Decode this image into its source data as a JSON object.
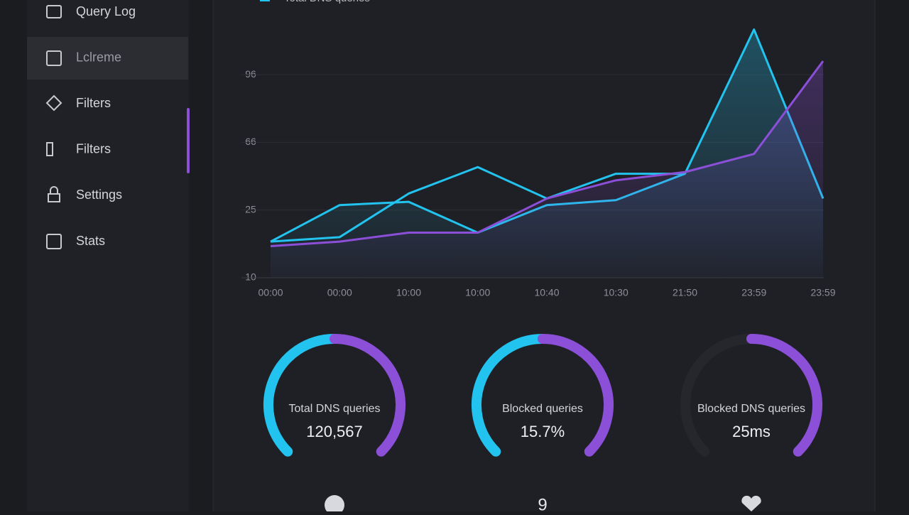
{
  "sidebar": {
    "items": [
      "Query Log",
      "Lclreme",
      "Filters",
      "Filters",
      "Settings",
      "Stats"
    ],
    "active": 1
  },
  "chart_data": {
    "type": "line",
    "categories": [
      "00:00",
      "00:00",
      "10:00",
      "10:00",
      "10:40",
      "10:30",
      "21:50",
      "23:59",
      "23:59"
    ],
    "series": [
      {
        "name": "Total DNS queries",
        "color": "#22c3ee",
        "fill": true,
        "values": [
          18,
          28,
          30,
          20,
          28,
          31,
          47,
          116,
          32
        ]
      },
      {
        "color": "#22c3ee",
        "values": [
          18,
          19,
          35,
          51,
          32,
          47,
          47,
          null,
          null
        ]
      },
      {
        "color": "#8b4fd8",
        "fill": true,
        "values": [
          17,
          18,
          20,
          20,
          32,
          43,
          48,
          59,
          102
        ]
      }
    ],
    "ylim": [
      10,
      116
    ],
    "yticks": [
      10,
      25,
      66,
      96
    ],
    "grid": true
  },
  "gauges": [
    {
      "label": "Total DNS queries",
      "value": "120,567",
      "track": false
    },
    {
      "label": "Blocked queries",
      "value": "15.7%",
      "track": false
    },
    {
      "label": "Blocked DNS queries",
      "value": "25ms",
      "track": true
    }
  ],
  "footer": {
    "middle": "9"
  }
}
